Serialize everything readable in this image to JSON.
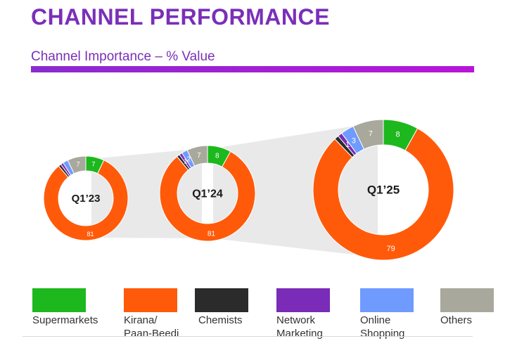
{
  "title": "CHANNEL PERFORMANCE",
  "subtitle": "Channel Importance – % Value",
  "colors": {
    "title": "#7a2fb8",
    "supermarkets": "#1db81d",
    "kirana": "#ff5a0a",
    "chemists": "#2b2b2b",
    "network": "#7a2bb8",
    "online": "#6f9bff",
    "others": "#a8a89c"
  },
  "chart_data": {
    "type": "donut",
    "series_order": [
      "Supermarkets",
      "Kirana/ Paan-Beedi",
      "Chemists",
      "Network Marketing",
      "Online Shopping",
      "Others"
    ],
    "charts": [
      {
        "label": "Q1’23",
        "values": [
          7,
          81,
          1,
          1,
          2,
          7
        ],
        "data_labels": [
          "7",
          "81",
          "",
          "",
          "",
          "7"
        ]
      },
      {
        "label": "Q1’24",
        "values": [
          8,
          81,
          1,
          1,
          2,
          7
        ],
        "data_labels": [
          "8",
          "81",
          "",
          "1",
          "2",
          "7"
        ]
      },
      {
        "label": "Q1’25",
        "values": [
          8,
          79,
          1,
          1,
          3,
          7
        ],
        "data_labels": [
          "8",
          "79",
          "",
          "1",
          "3",
          "7"
        ]
      }
    ]
  },
  "legend": [
    {
      "label": "Supermarkets",
      "color": "#1db81d"
    },
    {
      "label": "Kirana/\nPaan-Beedi",
      "color": "#ff5a0a"
    },
    {
      "label": "Chemists",
      "color": "#2b2b2b"
    },
    {
      "label": "Network\nMarketing",
      "color": "#7a2bb8"
    },
    {
      "label": "Online\nShopping",
      "color": "#6f9bff"
    },
    {
      "label": "Others",
      "color": "#a8a89c"
    }
  ]
}
